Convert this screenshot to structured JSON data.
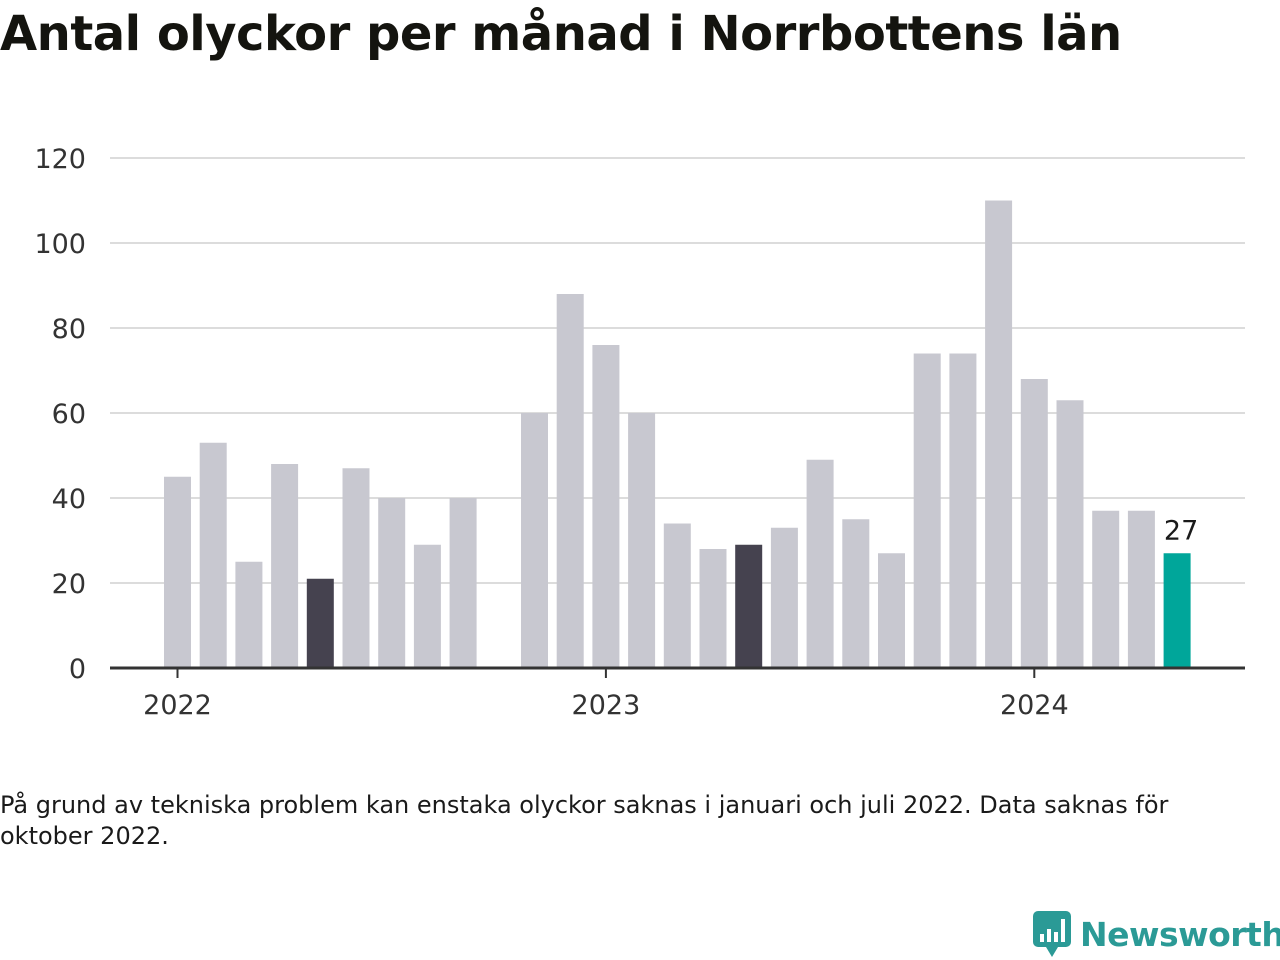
{
  "title": "Antal olyckor per månad i Norrbottens län",
  "note": "På grund av tekniska problem kan enstaka olyckor saknas i januari och juli 2022. Data saknas för oktober 2022.",
  "brand": {
    "name": "Newsworthy",
    "color": "#2b9a96",
    "icon": "newsworthy-bar-chart-icon"
  },
  "colors": {
    "default": "#c8c8d0",
    "highlight": "#45424f",
    "latest": "#00a69a",
    "grid": "#dcdcdc",
    "axis": "#333333"
  },
  "chart_data": {
    "type": "bar",
    "ylim": [
      0,
      120
    ],
    "yticks": [
      0,
      20,
      40,
      60,
      80,
      100,
      120
    ],
    "xticks": [
      {
        "label": "2022",
        "x": "2022-01"
      },
      {
        "label": "2023",
        "x": "2023-01"
      },
      {
        "label": "2024",
        "x": "2024-01"
      }
    ],
    "x": [
      "2022-01",
      "2022-02",
      "2022-03",
      "2022-04",
      "2022-05",
      "2022-06",
      "2022-07",
      "2022-08",
      "2022-09",
      "2022-10",
      "2022-11",
      "2022-12",
      "2023-01",
      "2023-02",
      "2023-03",
      "2023-04",
      "2023-05",
      "2023-06",
      "2023-07",
      "2023-08",
      "2023-09",
      "2023-10",
      "2023-11",
      "2023-12",
      "2024-01",
      "2024-02",
      "2024-03",
      "2024-04",
      "2024-05"
    ],
    "values": [
      45,
      53,
      25,
      48,
      21,
      47,
      40,
      29,
      40,
      null,
      60,
      88,
      76,
      60,
      34,
      28,
      29,
      33,
      49,
      35,
      27,
      74,
      74,
      110,
      68,
      63,
      37,
      37,
      27
    ],
    "highlighted": [
      "2022-05",
      "2023-05"
    ],
    "latest": "2024-05",
    "data_labels": [
      {
        "x": "2024-05",
        "label": "27"
      }
    ],
    "grid": true,
    "legend": "none"
  }
}
